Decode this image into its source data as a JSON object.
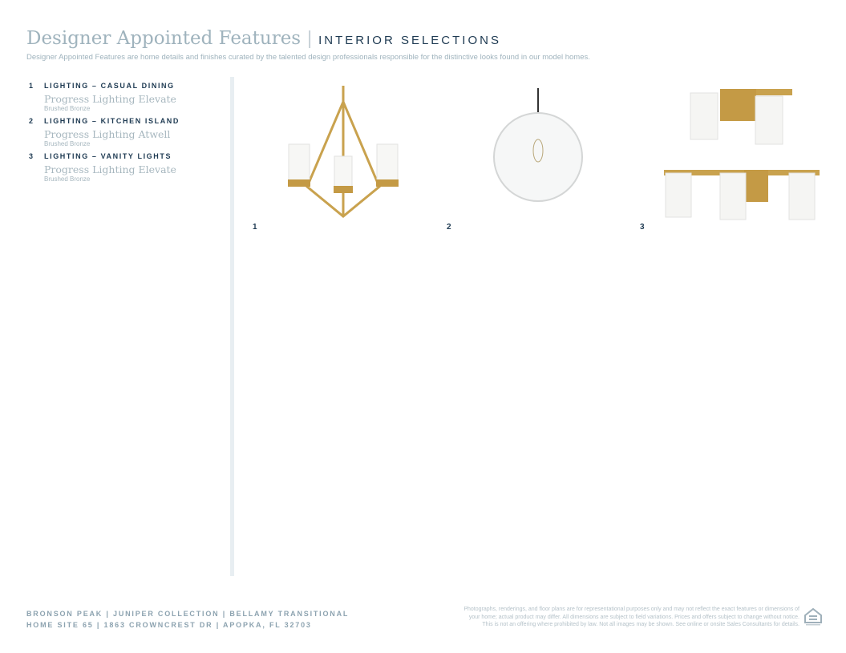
{
  "header": {
    "title": "Designer Appointed Features",
    "subtitle": "INTERIOR SELECTIONS",
    "intro": "Designer Appointed Features are home details and finishes curated by the talented design professionals responsible for the distinctive looks found in our model homes."
  },
  "selections": [
    {
      "number": "1",
      "category": "LIGHTING – CASUAL DINING",
      "product": "Progress Lighting Elevate",
      "finish": "Brushed Bronze"
    },
    {
      "number": "2",
      "category": "LIGHTING – KITCHEN ISLAND",
      "product": "Progress Lighting Atwell",
      "finish": "Brushed Bronze"
    },
    {
      "number": "3",
      "category": "LIGHTING – VANITY LIGHTS",
      "product": "Progress Lighting Elevate",
      "finish": "Brushed Bronze"
    }
  ],
  "images": [
    {
      "label": "1",
      "icon": "chandelier-image"
    },
    {
      "label": "2",
      "icon": "globe-pendant-image"
    },
    {
      "label": "3",
      "icon": "vanity-light-image"
    }
  ],
  "footer": {
    "line1": "BRONSON PEAK | JUNIPER COLLECTION | BELLAMY TRANSITIONAL",
    "line2": "HOME SITE 65 | 1863 CROWNCREST DR | APOPKA, FL 32703",
    "disclaimer1": "Photographs, renderings, and floor plans are for representational purposes only and may not reflect the exact features or dimensions of",
    "disclaimer2": "your home; actual product may differ. All dimensions are subject to field variations. Prices and offers subject to change without notice.",
    "disclaimer3": "This is not an offering where prohibited by law. Not all images may be shown. See online or onsite Sales Consultants for details.",
    "logo_icon": "equal-housing-opportunity-icon"
  }
}
